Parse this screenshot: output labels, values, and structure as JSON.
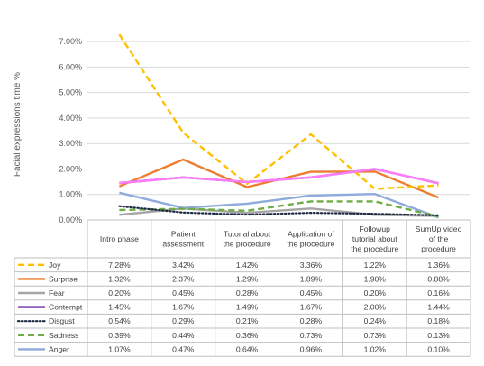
{
  "chart_data": {
    "type": "line",
    "ylabel": "Facial expressions time  %",
    "ylim": [
      0,
      7.5
    ],
    "yticks": [
      "0.00%",
      "1.00%",
      "2.00%",
      "3.00%",
      "4.00%",
      "5.00%",
      "6.00%",
      "7.00%"
    ],
    "grid": true,
    "legend": "data-table-below",
    "categories": [
      [
        "Intro phase"
      ],
      [
        "Patient",
        "assessment"
      ],
      [
        "Tutorial about",
        "the procedure"
      ],
      [
        "Application of",
        "the procedure"
      ],
      [
        "Followup",
        "tutorial about",
        "the procedure"
      ],
      [
        "SumUp video",
        "of the",
        "procedure"
      ]
    ],
    "series": [
      {
        "name": "Joy",
        "color": "#FFC000",
        "dash": "dash",
        "values": [
          7.28,
          3.42,
          1.42,
          3.36,
          1.22,
          1.36
        ],
        "labels": [
          "7.28%",
          "3.42%",
          "1.42%",
          "3.36%",
          "1.22%",
          "1.36%"
        ]
      },
      {
        "name": "Surprise",
        "color": "#ED7D31",
        "dash": "solid",
        "values": [
          1.32,
          2.37,
          1.29,
          1.89,
          1.9,
          0.88
        ],
        "labels": [
          "1.32%",
          "2.37%",
          "1.29%",
          "1.89%",
          "1.90%",
          "0.88%"
        ]
      },
      {
        "name": "Fear",
        "color": "#A5A5A5",
        "dash": "solid",
        "values": [
          0.2,
          0.45,
          0.28,
          0.45,
          0.2,
          0.16
        ],
        "labels": [
          "0.20%",
          "0.45%",
          "0.28%",
          "0.45%",
          "0.20%",
          "0.16%"
        ]
      },
      {
        "name": "Contempt",
        "color": "#7030A0",
        "dash": "solid",
        "values": [
          1.45,
          1.67,
          1.49,
          1.67,
          2.0,
          1.44
        ],
        "labels": [
          "1.45%",
          "1.67%",
          "1.49%",
          "1.67%",
          "2.00%",
          "1.44%"
        ]
      },
      {
        "name": "Disgust",
        "color": "#1F2A44",
        "dash": "dot",
        "values": [
          0.54,
          0.29,
          0.21,
          0.28,
          0.24,
          0.18
        ],
        "labels": [
          "0.54%",
          "0.29%",
          "0.21%",
          "0.28%",
          "0.24%",
          "0.18%"
        ]
      },
      {
        "name": "Sadness",
        "color": "#70AD47",
        "dash": "dash",
        "values": [
          0.39,
          0.44,
          0.36,
          0.73,
          0.73,
          0.13
        ],
        "labels": [
          "0.39%",
          "0.44%",
          "0.36%",
          "0.73%",
          "0.73%",
          "0.13%"
        ]
      },
      {
        "name": "Anger",
        "color": "#8FAADC",
        "dash": "solid",
        "values": [
          1.07,
          0.47,
          0.64,
          0.96,
          1.02,
          0.1
        ],
        "labels": [
          "1.07%",
          "0.47%",
          "0.64%",
          "0.96%",
          "1.02%",
          "0.10%"
        ]
      }
    ],
    "visual_overlay_color": "#FF7CFF"
  }
}
